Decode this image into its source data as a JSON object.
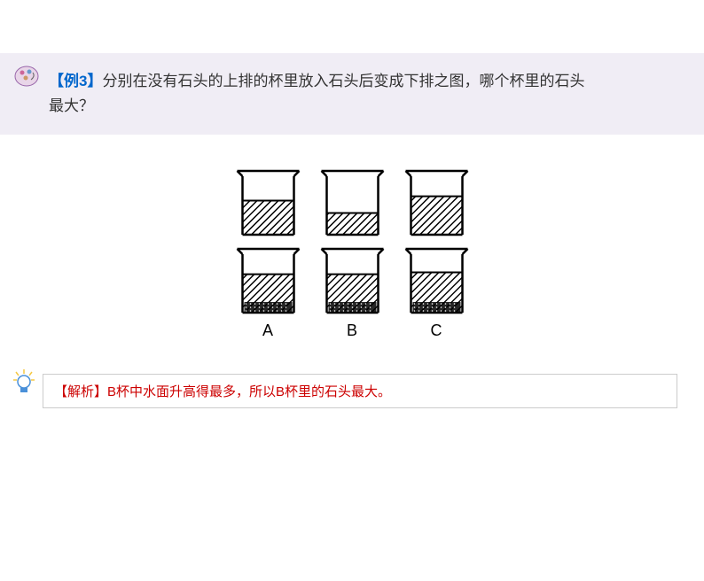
{
  "question": {
    "label": "【例3】",
    "text_line1": "分别在没有石头的上排的杯里放入石头后变成下排之图，哪个杯里的石头",
    "text_line2": "最大？"
  },
  "diagram": {
    "beakers_top": [
      {
        "water_level": 0.55,
        "has_stone": false
      },
      {
        "water_level": 0.35,
        "has_stone": false
      },
      {
        "water_level": 0.62,
        "has_stone": false
      }
    ],
    "beakers_bottom": [
      {
        "water_level": 0.62,
        "has_stone": true
      },
      {
        "water_level": 0.62,
        "has_stone": true
      },
      {
        "water_level": 0.65,
        "has_stone": true
      }
    ],
    "labels": [
      "A",
      "B",
      "C"
    ]
  },
  "answer": {
    "label": "【解析】",
    "text": "B杯中水面升高得最多，所以B杯里的石头最大。"
  },
  "colors": {
    "question_bg": "#f0edf5",
    "example_label": "#0066cc",
    "answer_text": "#cc0000",
    "border": "#cccccc",
    "stroke": "#000000"
  }
}
